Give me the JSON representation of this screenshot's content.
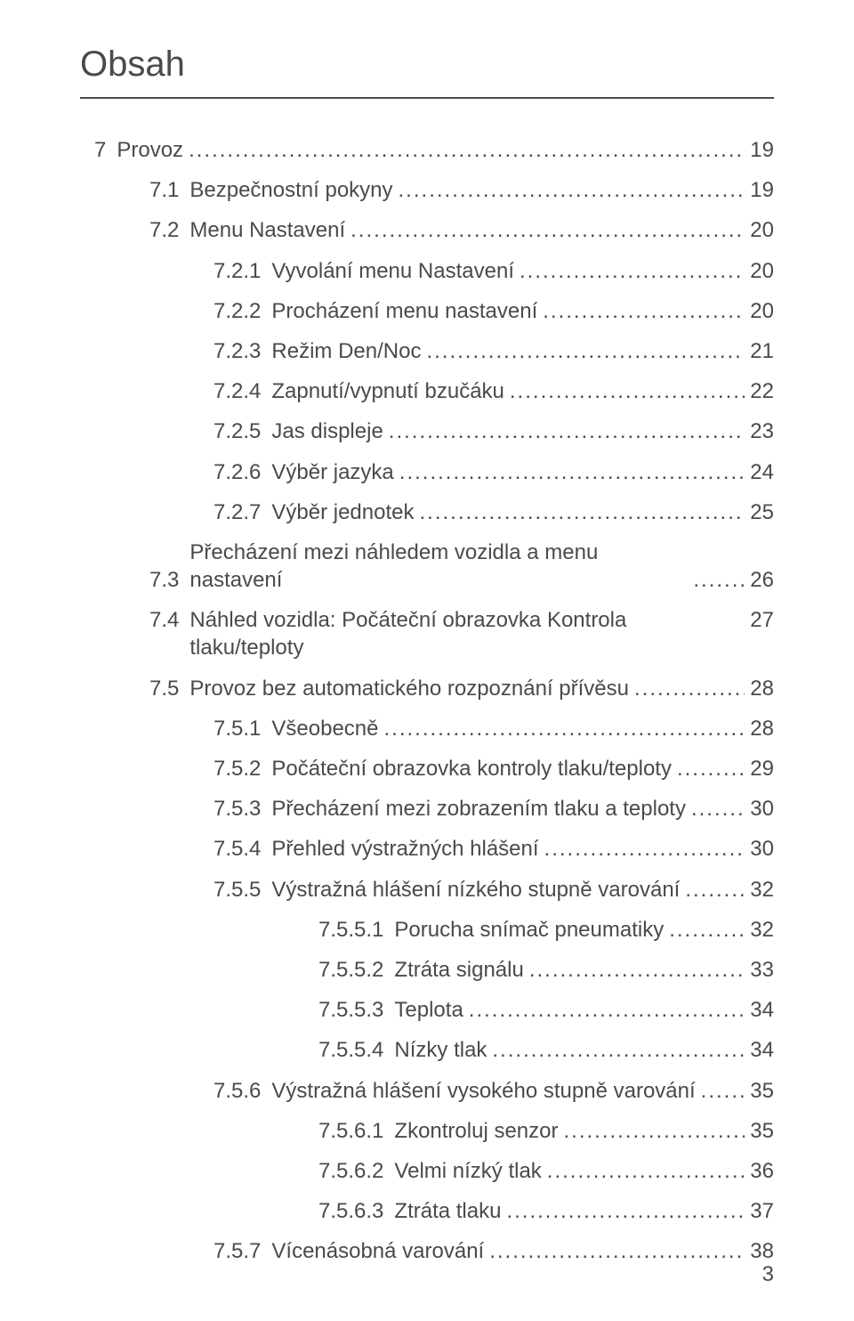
{
  "title": "Obsah",
  "page_number": "3",
  "colors": {
    "text": "#4a4a4a",
    "rule": "#4a4a4a",
    "background": "#ffffff"
  },
  "typography": {
    "title_fontsize_pt": 30,
    "body_fontsize_pt": 18,
    "font_family": "Arial"
  },
  "entries": [
    {
      "indent": 0,
      "num": "7",
      "label": "Provoz",
      "page": "19",
      "wrap": false
    },
    {
      "indent": 1,
      "num": "7.1",
      "label": "Bezpečnostní pokyny",
      "page": "19",
      "wrap": false
    },
    {
      "indent": 1,
      "num": "7.2",
      "label": "Menu Nastavení",
      "page": "20",
      "wrap": false
    },
    {
      "indent": 2,
      "num": "7.2.1",
      "label": "Vyvolání menu Nastavení",
      "page": "20",
      "wrap": false
    },
    {
      "indent": 2,
      "num": "7.2.2",
      "label": "Procházení menu nastavení",
      "page": "20",
      "wrap": false
    },
    {
      "indent": 2,
      "num": "7.2.3",
      "label": "Režim Den/Noc",
      "page": "21",
      "wrap": false
    },
    {
      "indent": 2,
      "num": "7.2.4",
      "label": "Zapnutí/vypnutí bzučáku",
      "page": "22",
      "wrap": false
    },
    {
      "indent": 2,
      "num": "7.2.5",
      "label": "Jas displeje",
      "page": "23",
      "wrap": false
    },
    {
      "indent": 2,
      "num": "7.2.6",
      "label": "Výběr jazyka",
      "page": "24",
      "wrap": false
    },
    {
      "indent": 2,
      "num": "7.2.7",
      "label": "Výběr jednotek",
      "page": "25",
      "wrap": false
    },
    {
      "indent": 1,
      "num": "7.3",
      "label": "Přecházení mezi náhledem vozidla a menu nastavení",
      "page": "26",
      "wrap": true
    },
    {
      "indent": 1,
      "num": "7.4",
      "label": "Náhled vozidla: Počáteční obrazovka Kontrola tlaku/teploty",
      "page": "27",
      "wrap": false
    },
    {
      "indent": 1,
      "num": "7.5",
      "label": "Provoz bez automatického rozpoznání přívěsu",
      "page": "28",
      "wrap": false
    },
    {
      "indent": 2,
      "num": "7.5.1",
      "label": "Všeobecně",
      "page": "28",
      "wrap": false
    },
    {
      "indent": 2,
      "num": "7.5.2",
      "label": "Počáteční obrazovka kontroly tlaku/teploty",
      "page": "29",
      "wrap": false
    },
    {
      "indent": 2,
      "num": "7.5.3",
      "label": "Přecházení mezi zobrazením tlaku a teploty",
      "page": "30",
      "wrap": false
    },
    {
      "indent": 2,
      "num": "7.5.4",
      "label": "Přehled výstražných hlášení",
      "page": "30",
      "wrap": false
    },
    {
      "indent": 2,
      "num": "7.5.5",
      "label": "Výstražná hlášení nízkého stupně varování",
      "page": "32",
      "wrap": false
    },
    {
      "indent": 3,
      "num": "7.5.5.1",
      "label": "Porucha snímač pneumatiky",
      "page": "32",
      "wrap": false
    },
    {
      "indent": 3,
      "num": "7.5.5.2",
      "label": "Ztráta signálu",
      "page": "33",
      "wrap": false
    },
    {
      "indent": 3,
      "num": "7.5.5.3",
      "label": "Teplota",
      "page": "34",
      "wrap": false
    },
    {
      "indent": 3,
      "num": "7.5.5.4",
      "label": "Nízky tlak",
      "page": "34",
      "wrap": false
    },
    {
      "indent": 2,
      "num": "7.5.6",
      "label": "Výstražná hlášení vysokého stupně varování",
      "page": "35",
      "wrap": false
    },
    {
      "indent": 3,
      "num": "7.5.6.1",
      "label": "Zkontroluj senzor",
      "page": "35",
      "wrap": false
    },
    {
      "indent": 3,
      "num": "7.5.6.2",
      "label": "Velmi nízký tlak",
      "page": "36",
      "wrap": false
    },
    {
      "indent": 3,
      "num": "7.5.6.3",
      "label": "Ztráta tlaku",
      "page": "37",
      "wrap": false
    },
    {
      "indent": 2,
      "num": "7.5.7",
      "label": "Vícenásobná varování",
      "page": "38",
      "wrap": false
    }
  ]
}
